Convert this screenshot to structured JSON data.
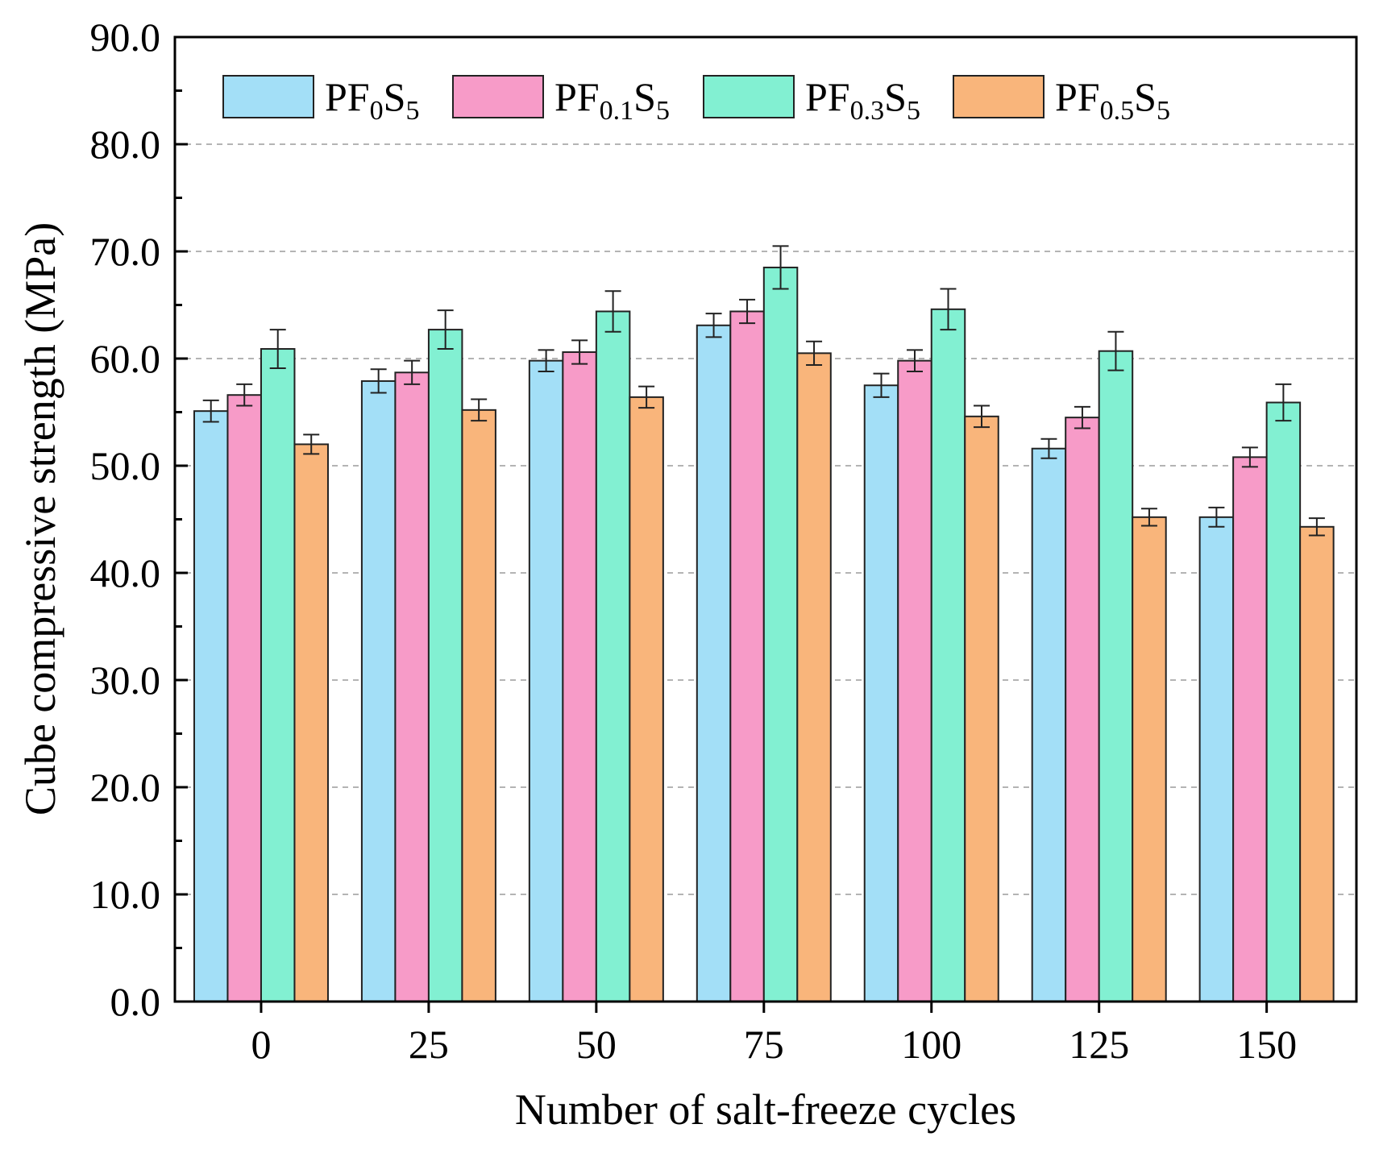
{
  "chart_data": {
    "type": "bar",
    "title": "",
    "xlabel": "Number of salt-freeze cycles",
    "ylabel": "Cube compressive strength (MPa)",
    "ylim": [
      0,
      90
    ],
    "ytick_step": 10,
    "ytick_labels": [
      "0.0",
      "10.0",
      "20.0",
      "30.0",
      "40.0",
      "50.0",
      "60.0",
      "70.0",
      "80.0",
      "90.0"
    ],
    "categories": [
      "0",
      "25",
      "50",
      "75",
      "100",
      "125",
      "150"
    ],
    "grid": "horizontal dashed",
    "legend_position": "top",
    "series": [
      {
        "name": "PF0S5",
        "base": "PF",
        "sub1": "0",
        "mid": "S",
        "sub2": "5",
        "color": "#a3dff7",
        "values": [
          55.1,
          57.9,
          59.8,
          63.1,
          57.5,
          51.6,
          45.2
        ],
        "errors": [
          1.0,
          1.1,
          1.0,
          1.1,
          1.1,
          0.9,
          0.9
        ]
      },
      {
        "name": "PF0.1S5",
        "base": "PF",
        "sub1": "0.1",
        "mid": "S",
        "sub2": "5",
        "color": "#f79bc8",
        "values": [
          56.6,
          58.7,
          60.6,
          64.4,
          59.8,
          54.5,
          50.8
        ],
        "errors": [
          1.0,
          1.1,
          1.1,
          1.1,
          1.0,
          1.0,
          0.9
        ]
      },
      {
        "name": "PF0.3S5",
        "base": "PF",
        "sub1": "0.3",
        "mid": "S",
        "sub2": "5",
        "color": "#82f0d2",
        "values": [
          60.9,
          62.7,
          64.4,
          68.5,
          64.6,
          60.7,
          55.9
        ],
        "errors": [
          1.8,
          1.8,
          1.9,
          2.0,
          1.9,
          1.8,
          1.7
        ]
      },
      {
        "name": "PF0.5S5",
        "base": "PF",
        "sub1": "0.5",
        "mid": "S",
        "sub2": "5",
        "color": "#f9b57b",
        "values": [
          52.0,
          55.2,
          56.4,
          60.5,
          54.6,
          45.2,
          44.3
        ],
        "errors": [
          0.9,
          1.0,
          1.0,
          1.1,
          1.0,
          0.8,
          0.8
        ]
      }
    ]
  }
}
